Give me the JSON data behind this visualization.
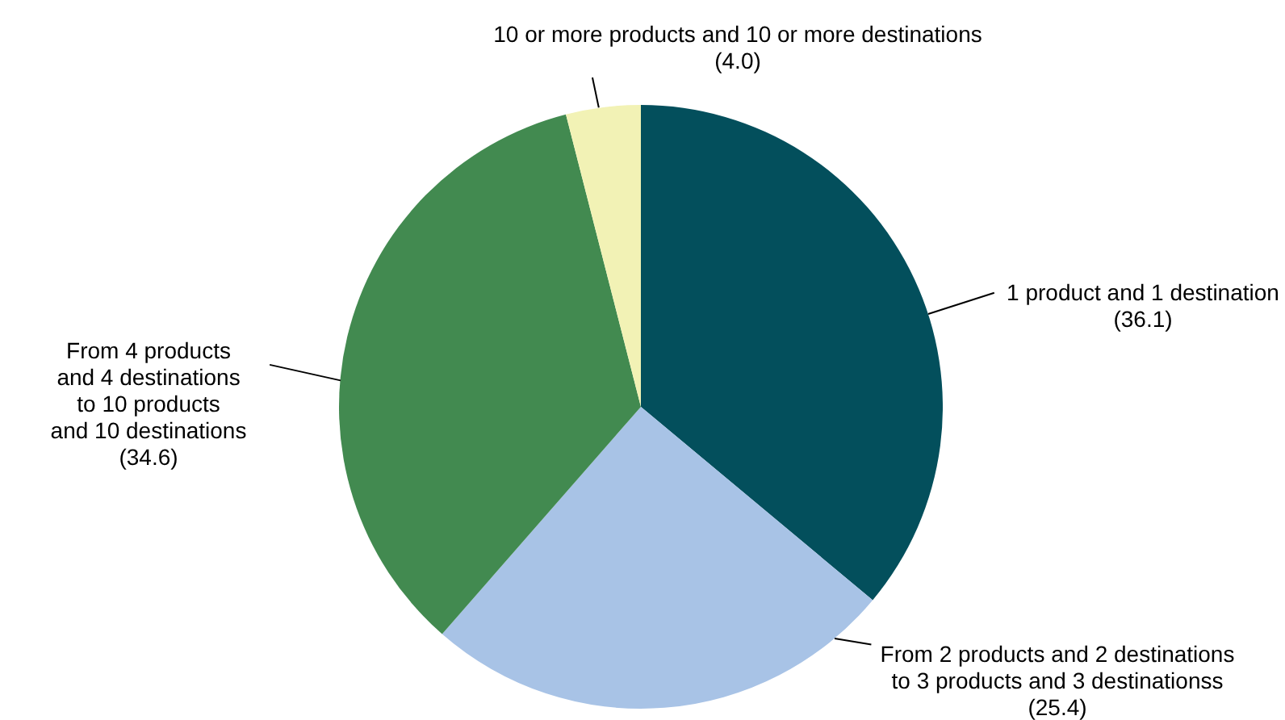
{
  "chart_data": {
    "type": "pie",
    "categories": [
      "1 product and 1 destination",
      "From 2 products and 2 destinations to 3 products and 3 destinationss",
      "From 4 products and 4 destinations to 10 products and 10 destinations",
      "10 or more products and 10 or more destinations"
    ],
    "values": [
      36.1,
      25.4,
      34.6,
      4.0
    ],
    "colors": [
      "#034f5c",
      "#a8c3e6",
      "#428a50",
      "#f2f2b5"
    ],
    "value_labels": [
      "(36.1)",
      "(25.4)",
      "(34.6)",
      "(4.0)"
    ],
    "legend": false
  }
}
